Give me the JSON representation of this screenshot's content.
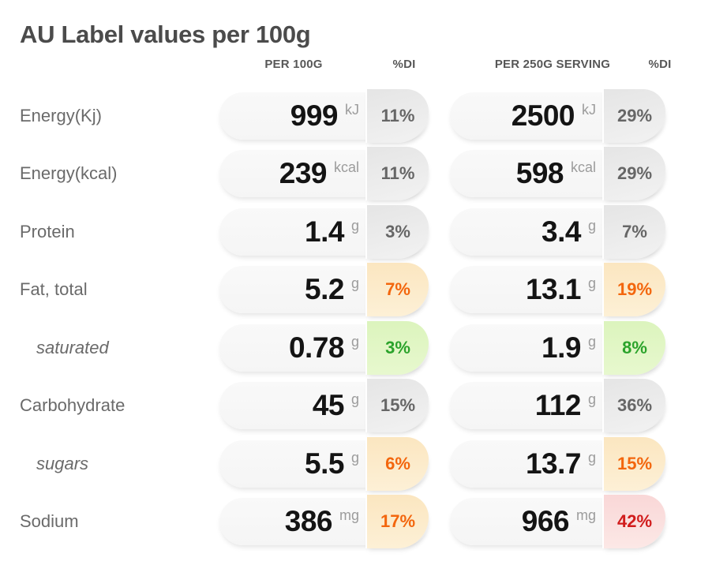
{
  "title": "AU Label values per 100g",
  "header": {
    "col1": {
      "value_label": "PER 100G",
      "di_label": "%DI"
    },
    "col2": {
      "value_label": "PER 250G SERVING",
      "di_label": "%DI"
    }
  },
  "palette": {
    "title_text": "#4b4b4b",
    "header_text": "#575757",
    "label_text": "#6a6a6a",
    "value_text": "#141414",
    "unit_text": "#9c9c9c",
    "pill_bg": "#f7f7f7",
    "badge_gray_text": "#666666",
    "badge_orange_text": "#f3660d",
    "badge_green_text": "#2ba32b",
    "badge_red_text": "#d11c1c",
    "badge_gray_bg1": "#e5e5e5",
    "badge_gray_bg2": "#f2f2f2",
    "badge_orange_bg1": "#fbe6c0",
    "badge_orange_bg2": "#fdf0d6",
    "badge_green_bg1": "#dcf4bd",
    "badge_green_bg2": "#e7f8ce",
    "badge_red_bg1": "#f9d7d7",
    "badge_red_bg2": "#fce8e6"
  },
  "rows": [
    {
      "label": "Energy(Kj)",
      "style": "normal",
      "cells": [
        {
          "value": "999",
          "unit": "kJ",
          "di": "11%",
          "di_color": "gray"
        },
        {
          "value": "2500",
          "unit": "kJ",
          "di": "29%",
          "di_color": "gray"
        }
      ]
    },
    {
      "label": "Energy(kcal)",
      "style": "normal",
      "cells": [
        {
          "value": "239",
          "unit": "kcal",
          "di": "11%",
          "di_color": "gray"
        },
        {
          "value": "598",
          "unit": "kcal",
          "di": "29%",
          "di_color": "gray"
        }
      ]
    },
    {
      "label": "Protein",
      "style": "normal",
      "cells": [
        {
          "value": "1.4",
          "unit": "g",
          "di": "3%",
          "di_color": "gray"
        },
        {
          "value": "3.4",
          "unit": "g",
          "di": "7%",
          "di_color": "gray"
        }
      ]
    },
    {
      "label": "Fat, total",
      "style": "normal",
      "cells": [
        {
          "value": "5.2",
          "unit": "g",
          "di": "7%",
          "di_color": "orange"
        },
        {
          "value": "13.1",
          "unit": "g",
          "di": "19%",
          "di_color": "orange"
        }
      ]
    },
    {
      "label": "saturated",
      "style": "indent",
      "cells": [
        {
          "value": "0.78",
          "unit": "g",
          "di": "3%",
          "di_color": "green"
        },
        {
          "value": "1.9",
          "unit": "g",
          "di": "8%",
          "di_color": "green"
        }
      ]
    },
    {
      "label": "Carbohydrate",
      "style": "normal",
      "cells": [
        {
          "value": "45",
          "unit": "g",
          "di": "15%",
          "di_color": "gray"
        },
        {
          "value": "112",
          "unit": "g",
          "di": "36%",
          "di_color": "gray"
        }
      ]
    },
    {
      "label": "sugars",
      "style": "indent",
      "cells": [
        {
          "value": "5.5",
          "unit": "g",
          "di": "6%",
          "di_color": "orange"
        },
        {
          "value": "13.7",
          "unit": "g",
          "di": "15%",
          "di_color": "orange"
        }
      ]
    },
    {
      "label": "Sodium",
      "style": "normal",
      "cells": [
        {
          "value": "386",
          "unit": "mg",
          "di": "17%",
          "di_color": "orange"
        },
        {
          "value": "966",
          "unit": "mg",
          "di": "42%",
          "di_color": "red"
        }
      ]
    }
  ],
  "chart_data": {
    "type": "table",
    "title": "AU Label values per 100g",
    "columns": [
      "",
      "PER 100G",
      "%DI",
      "PER 250G SERVING",
      "%DI"
    ],
    "rows": [
      [
        "Energy(Kj)",
        "999 kJ",
        "11%",
        "2500 kJ",
        "29%"
      ],
      [
        "Energy(kcal)",
        "239 kcal",
        "11%",
        "598 kcal",
        "29%"
      ],
      [
        "Protein",
        "1.4 g",
        "3%",
        "3.4 g",
        "7%"
      ],
      [
        "Fat, total",
        "5.2 g",
        "7%",
        "13.1 g",
        "19%"
      ],
      [
        "saturated",
        "0.78 g",
        "3%",
        "1.9 g",
        "8%"
      ],
      [
        "Carbohydrate",
        "45 g",
        "15%",
        "112 g",
        "36%"
      ],
      [
        "sugars",
        "5.5 g",
        "6%",
        "13.7 g",
        "15%"
      ],
      [
        "Sodium",
        "386 mg",
        "17%",
        "966 mg",
        "42%"
      ]
    ],
    "di_status_colors": {
      "normal": "gray",
      "caution": "orange",
      "good": "green",
      "alert": "red"
    }
  }
}
